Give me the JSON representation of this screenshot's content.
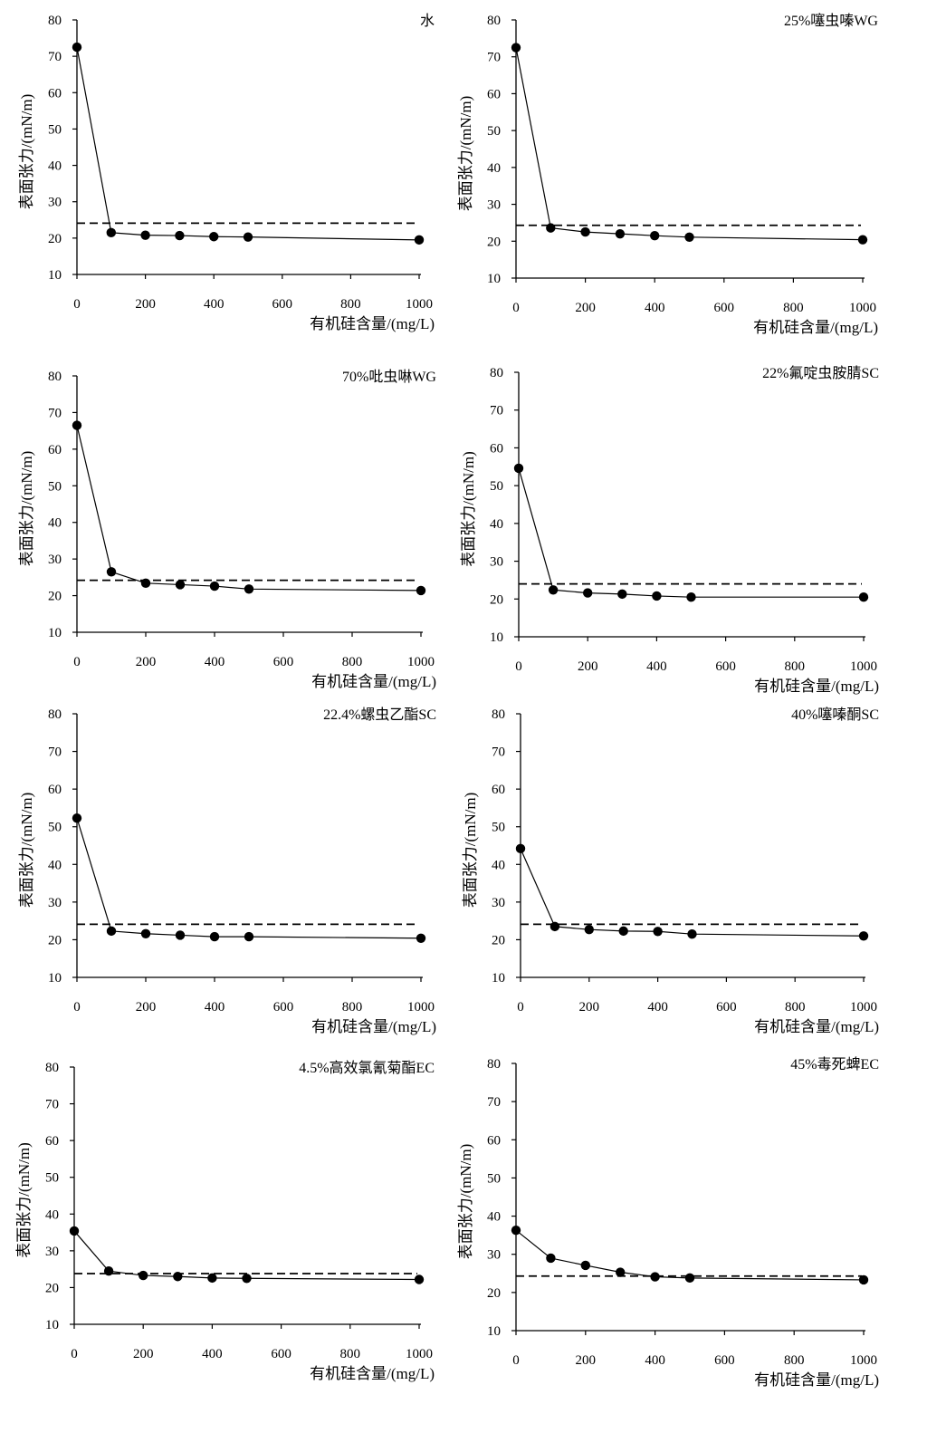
{
  "shared": {
    "xlabel": "有机硅含量/(mg/L)",
    "ylabel": "表面张力/(mN/m)",
    "x_ticks": [
      "0",
      "200",
      "400",
      "600",
      "800",
      "1000"
    ],
    "y_ticks": [
      "10",
      "20",
      "30",
      "40",
      "50",
      "60",
      "70",
      "80"
    ]
  },
  "chart_data": [
    {
      "type": "line",
      "title": "水",
      "xlabel": "有机硅含量/(mg/L)",
      "ylabel": "表面张力/(mN/m)",
      "xlim": [
        0,
        1000
      ],
      "ylim": [
        10,
        80
      ],
      "x": [
        0,
        100,
        200,
        300,
        400,
        500,
        1000
      ],
      "series": [
        {
          "values": [
            72.5,
            21.5,
            20.8,
            20.7,
            20.4,
            20.3,
            19.5
          ]
        }
      ],
      "reference_line": 24.1
    },
    {
      "type": "line",
      "title": "25%噻虫嗪WG",
      "xlabel": "有机硅含量/(mg/L)",
      "ylabel": "表面张力/(mN/m)",
      "xlim": [
        0,
        1000
      ],
      "ylim": [
        10,
        80
      ],
      "x": [
        0,
        100,
        200,
        300,
        400,
        500,
        1000
      ],
      "series": [
        {
          "values": [
            72.5,
            23.6,
            22.5,
            22.0,
            21.5,
            21.1,
            20.4
          ]
        }
      ],
      "reference_line": 24.3
    },
    {
      "type": "line",
      "title": "70%吡虫啉WG",
      "xlabel": "有机硅含量/(mg/L)",
      "ylabel": "表面张力/(mN/m)",
      "xlim": [
        0,
        1000
      ],
      "ylim": [
        10,
        80
      ],
      "x": [
        0,
        100,
        200,
        300,
        400,
        500,
        1000
      ],
      "series": [
        {
          "values": [
            66.5,
            26.5,
            23.4,
            23.0,
            22.6,
            21.8,
            21.4
          ]
        }
      ],
      "reference_line": 24.2
    },
    {
      "type": "line",
      "title": "22%氟啶虫胺腈SC",
      "xlabel": "有机硅含量/(mg/L)",
      "ylabel": "表面张力/(mN/m)",
      "xlim": [
        0,
        1000
      ],
      "ylim": [
        10,
        80
      ],
      "x": [
        0,
        100,
        200,
        300,
        400,
        500,
        1000
      ],
      "series": [
        {
          "values": [
            54.6,
            22.4,
            21.6,
            21.3,
            20.8,
            20.5,
            20.5
          ]
        }
      ],
      "reference_line": 24.0
    },
    {
      "type": "line",
      "title": "22.4%螺虫乙酯SC",
      "xlabel": "有机硅含量/(mg/L)",
      "ylabel": "表面张力/(mN/m)",
      "xlim": [
        0,
        1000
      ],
      "ylim": [
        10,
        80
      ],
      "x": [
        0,
        100,
        200,
        300,
        400,
        500,
        1000
      ],
      "series": [
        {
          "values": [
            52.3,
            22.3,
            21.6,
            21.2,
            20.8,
            20.8,
            20.4
          ]
        }
      ],
      "reference_line": 24.1
    },
    {
      "type": "line",
      "title": "40%噻嗪酮SC",
      "xlabel": "有机硅含量/(mg/L)",
      "ylabel": "表面张力/(mN/m)",
      "xlim": [
        0,
        1000
      ],
      "ylim": [
        10,
        80
      ],
      "x": [
        0,
        100,
        200,
        300,
        400,
        500,
        1000
      ],
      "series": [
        {
          "values": [
            44.2,
            23.5,
            22.7,
            22.3,
            22.2,
            21.5,
            21.0
          ]
        }
      ],
      "reference_line": 24.1
    },
    {
      "type": "line",
      "title": "4.5%高效氯氰菊酯EC",
      "xlabel": "有机硅含量/(mg/L)",
      "ylabel": "表面张力/(mN/m)",
      "xlim": [
        0,
        1000
      ],
      "ylim": [
        10,
        80
      ],
      "x": [
        0,
        100,
        200,
        300,
        400,
        500,
        1000
      ],
      "series": [
        {
          "values": [
            35.4,
            24.5,
            23.3,
            23.0,
            22.6,
            22.5,
            22.2
          ]
        }
      ],
      "reference_line": 23.8
    },
    {
      "type": "line",
      "title": "45%毒死蜱EC",
      "xlabel": "有机硅含量/(mg/L)",
      "ylabel": "表面张力/(mN/m)",
      "xlim": [
        0,
        1000
      ],
      "ylim": [
        10,
        80
      ],
      "x": [
        0,
        100,
        200,
        300,
        400,
        500,
        1000
      ],
      "series": [
        {
          "values": [
            36.3,
            29.0,
            27.1,
            25.3,
            24.1,
            23.8,
            23.3
          ]
        }
      ],
      "reference_line": 24.3
    }
  ]
}
